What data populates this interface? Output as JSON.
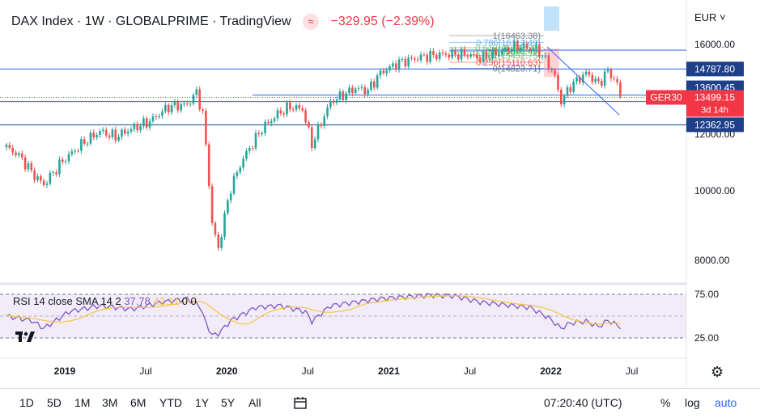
{
  "header": {
    "symbol_line": "DAX Index · 1W · GLOBALPRIME · TradingView",
    "indicator_glyph": "≈",
    "change": "−329.95 (−2.39%)"
  },
  "currency": "EUR",
  "currency_chevron": "˅",
  "rsi": {
    "label": "RSI 14 close SMA 14 2",
    "value": "37.78",
    "sma": "42.11",
    "extra1": "0",
    "extra2": "0"
  },
  "timeframes": [
    "1D",
    "5D",
    "1M",
    "3M",
    "6M",
    "YTD",
    "1Y",
    "5Y",
    "All"
  ],
  "clock": "07:20:40 (UTC)",
  "scale_buttons": {
    "percent": "%",
    "log": "log",
    "auto": "auto"
  },
  "colors": {
    "up": "#26a69a",
    "down": "#ef5350",
    "hline": "#2962ff",
    "rsi": "#7e57c2",
    "sma": "#f5c542",
    "label_bg": "#1e3f8a",
    "current_bg": "#f23645"
  },
  "chart_data": {
    "type": "candlestick",
    "title": "DAX Index",
    "x_ticks": [
      "2019",
      "Jul",
      "2020",
      "Jul",
      "2021",
      "Jul",
      "2022",
      "Jul"
    ],
    "y_ticks": [
      "16000.00",
      "12000.00",
      "10000.00",
      "8000.00"
    ],
    "rsi_ticks": [
      "75.00",
      "25.00"
    ],
    "price_labels": {
      "level1": "14787.80",
      "level2": "13600.45",
      "current_symbol": "GER30",
      "current": "13499.15",
      "countdown": "3d 14h",
      "level3": "12362.95"
    },
    "fib": [
      {
        "ratio": "1",
        "value": "16463.38"
      },
      {
        "ratio": "0.786",
        "value": "16112.49"
      },
      {
        "ratio": "0.618",
        "value": "15838.23"
      },
      {
        "ratio": "0.5",
        "value": "15645.49"
      },
      {
        "ratio": "0.382",
        "value": "15452.75"
      },
      {
        "ratio": "0.236",
        "value": "15110.63"
      },
      {
        "ratio": "0",
        "value": "14823.71"
      }
    ],
    "anchors": [
      [
        0,
        11500
      ],
      [
        4,
        11200
      ],
      [
        9,
        10500
      ],
      [
        12,
        10200
      ],
      [
        18,
        11000
      ],
      [
        25,
        11700
      ],
      [
        30,
        12100
      ],
      [
        35,
        11900
      ],
      [
        40,
        12200
      ],
      [
        46,
        12500
      ],
      [
        52,
        13100
      ],
      [
        58,
        13200
      ],
      [
        61,
        13700
      ],
      [
        63,
        12800
      ],
      [
        66,
        9000
      ],
      [
        68,
        8300
      ],
      [
        72,
        10100
      ],
      [
        76,
        11100
      ],
      [
        82,
        12200
      ],
      [
        87,
        12800
      ],
      [
        91,
        13100
      ],
      [
        95,
        13000
      ],
      [
        98,
        11600
      ],
      [
        104,
        13300
      ],
      [
        112,
        13900
      ],
      [
        116,
        13800
      ],
      [
        120,
        14600
      ],
      [
        126,
        15100
      ],
      [
        134,
        15400
      ],
      [
        140,
        15500
      ],
      [
        148,
        15500
      ],
      [
        152,
        15300
      ],
      [
        158,
        15600
      ],
      [
        164,
        15900
      ],
      [
        170,
        15800
      ],
      [
        174,
        15000
      ],
      [
        176,
        14400
      ],
      [
        178,
        13300
      ],
      [
        181,
        14000
      ],
      [
        186,
        14600
      ],
      [
        190,
        14100
      ],
      [
        193,
        14700
      ],
      [
        196,
        14100
      ],
      [
        197,
        13500
      ]
    ],
    "rsi_anchors": [
      [
        0,
        50
      ],
      [
        8,
        45
      ],
      [
        12,
        36
      ],
      [
        20,
        55
      ],
      [
        30,
        62
      ],
      [
        40,
        58
      ],
      [
        50,
        66
      ],
      [
        58,
        70
      ],
      [
        62,
        62
      ],
      [
        64,
        42
      ],
      [
        66,
        28
      ],
      [
        68,
        30
      ],
      [
        72,
        45
      ],
      [
        80,
        60
      ],
      [
        88,
        62
      ],
      [
        96,
        55
      ],
      [
        98,
        44
      ],
      [
        104,
        62
      ],
      [
        112,
        66
      ],
      [
        120,
        70
      ],
      [
        128,
        72
      ],
      [
        136,
        74
      ],
      [
        144,
        73
      ],
      [
        152,
        66
      ],
      [
        160,
        63
      ],
      [
        168,
        60
      ],
      [
        174,
        48
      ],
      [
        178,
        36
      ],
      [
        181,
        42
      ],
      [
        186,
        44
      ],
      [
        190,
        38
      ],
      [
        193,
        45
      ],
      [
        197,
        37.78
      ]
    ]
  }
}
